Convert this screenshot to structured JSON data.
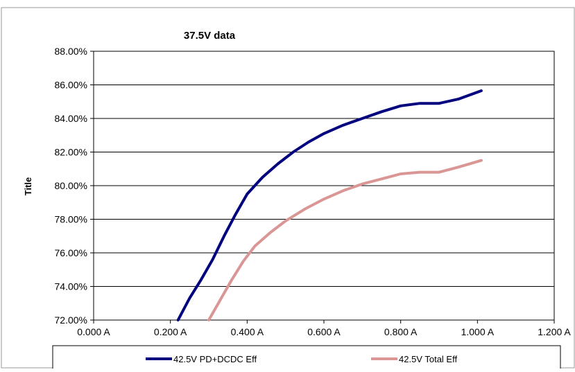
{
  "chart_data": {
    "type": "line",
    "title": "37.5V data",
    "ylabel": "Title",
    "xlabel": "",
    "xlim": [
      0,
      1.2
    ],
    "ylim": [
      0.72,
      0.88
    ],
    "x_ticks": [
      {
        "value": 0.0,
        "label": "0.000 A"
      },
      {
        "value": 0.2,
        "label": "0.200 A"
      },
      {
        "value": 0.4,
        "label": "0.400 A"
      },
      {
        "value": 0.6,
        "label": "0.600 A"
      },
      {
        "value": 0.8,
        "label": "0.800 A"
      },
      {
        "value": 1.0,
        "label": "1.000 A"
      },
      {
        "value": 1.2,
        "label": "1.200 A"
      }
    ],
    "y_ticks": [
      {
        "value": 0.72,
        "label": "72.00%"
      },
      {
        "value": 0.74,
        "label": "74.00%"
      },
      {
        "value": 0.76,
        "label": "76.00%"
      },
      {
        "value": 0.78,
        "label": "78.00%"
      },
      {
        "value": 0.8,
        "label": "80.00%"
      },
      {
        "value": 0.82,
        "label": "82.00%"
      },
      {
        "value": 0.84,
        "label": "84.00%"
      },
      {
        "value": 0.86,
        "label": "86.00%"
      },
      {
        "value": 0.88,
        "label": "88.00%"
      }
    ],
    "grid": "horizontal",
    "legend_position": "bottom",
    "series": [
      {
        "name": "42.5V PD+DCDC Eff",
        "color": "#00007f",
        "x": [
          0.22,
          0.25,
          0.28,
          0.31,
          0.34,
          0.37,
          0.4,
          0.44,
          0.48,
          0.52,
          0.56,
          0.6,
          0.65,
          0.7,
          0.75,
          0.8,
          0.85,
          0.9,
          0.95,
          1.01
        ],
        "y": [
          0.72,
          0.733,
          0.744,
          0.756,
          0.77,
          0.783,
          0.795,
          0.805,
          0.813,
          0.82,
          0.826,
          0.831,
          0.836,
          0.84,
          0.844,
          0.8475,
          0.849,
          0.849,
          0.8515,
          0.8565
        ]
      },
      {
        "name": "42.5V Total Eff",
        "color": "#d99694",
        "x": [
          0.3,
          0.33,
          0.36,
          0.39,
          0.42,
          0.46,
          0.5,
          0.55,
          0.6,
          0.65,
          0.7,
          0.75,
          0.8,
          0.85,
          0.9,
          0.95,
          1.01
        ],
        "y": [
          0.72,
          0.732,
          0.744,
          0.755,
          0.764,
          0.772,
          0.779,
          0.786,
          0.792,
          0.797,
          0.801,
          0.804,
          0.807,
          0.808,
          0.808,
          0.811,
          0.815
        ]
      }
    ]
  }
}
